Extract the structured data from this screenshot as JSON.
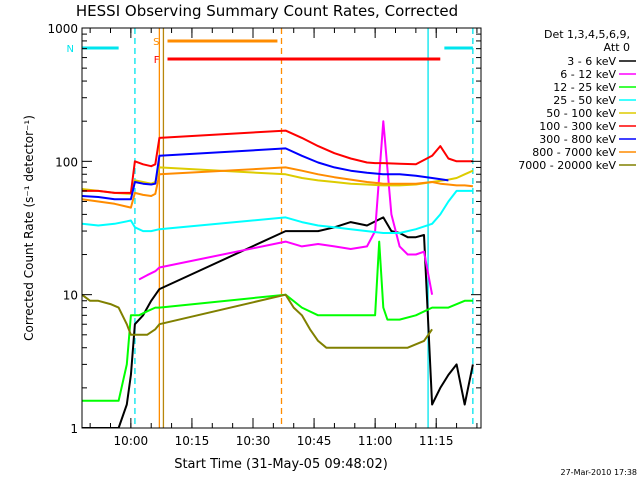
{
  "chart_data": {
    "type": "line",
    "title": "HESSI Observing Summary Count Rates, Corrected",
    "xlabel": "Start Time (31-May-05 09:48:02)",
    "ylabel": "Corrected Count Rate (s⁻¹ detector⁻¹)",
    "yscale": "log",
    "ylim": [
      1,
      1000
    ],
    "xlim": [
      "09:48",
      "11:26"
    ],
    "x_ticks": [
      "10:00",
      "10:15",
      "10:30",
      "10:45",
      "11:00",
      "11:15"
    ],
    "y_ticks": [
      "1",
      "10",
      "100",
      "1000"
    ],
    "timestamp": "27-Mar-2010 17:38",
    "legend": {
      "position": "right",
      "header": "Det 1,3,4,5,6,9,",
      "subheader": "Att 0"
    },
    "flags": [
      {
        "label": "N",
        "color": "#00e5ee",
        "segments": [
          [
            "09:48",
            "09:57"
          ],
          [
            "11:17",
            "11:24"
          ]
        ]
      },
      {
        "label": "S",
        "color": "#ff8c00",
        "segments": [
          [
            "10:09",
            "10:36"
          ]
        ]
      },
      {
        "label": "F",
        "color": "#ff0000",
        "segments": [
          [
            "10:09",
            "11:16"
          ]
        ]
      }
    ],
    "vlines": [
      {
        "t": "10:01",
        "color": "#00e5ee",
        "dash": true
      },
      {
        "t": "10:07",
        "color": "#ff8c00",
        "dash": false
      },
      {
        "t": "10:08",
        "color": "#b8860b",
        "dash": false
      },
      {
        "t": "10:37",
        "color": "#ff8c00",
        "dash": true
      },
      {
        "t": "11:13",
        "color": "#00e5ee",
        "dash": false
      },
      {
        "t": "11:24",
        "color": "#00e5ee",
        "dash": true
      }
    ],
    "series": [
      {
        "name": "3 - 6 keV",
        "color": "#000000",
        "x": [
          "09:48",
          "09:50",
          "09:52",
          "09:55",
          "09:57",
          "09:59",
          "10:00",
          "10:01",
          "10:03",
          "10:05",
          "10:07",
          "10:38",
          "10:42",
          "10:46",
          "10:50",
          "10:54",
          "10:58",
          "11:02",
          "11:04",
          "11:06",
          "11:08",
          "11:10",
          "11:12",
          "11:14",
          "11:16",
          "11:18",
          "11:20",
          "11:22",
          "11:24"
        ],
        "y": [
          1,
          1,
          1,
          1,
          1,
          1.5,
          2.5,
          6,
          7,
          9,
          11,
          30,
          30,
          30,
          32,
          35,
          33,
          38,
          30,
          29,
          27,
          27,
          28,
          1.5,
          2,
          2.5,
          3,
          1.5,
          3
        ]
      },
      {
        "name": "6 - 12 keV",
        "color": "#ff00ff",
        "x": [
          "10:02",
          "10:04",
          "10:06",
          "10:07",
          "10:38",
          "10:42",
          "10:46",
          "10:50",
          "10:54",
          "10:58",
          "11:00",
          "11:02",
          "11:04",
          "11:06",
          "11:08",
          "11:10",
          "11:12",
          "11:14"
        ],
        "y": [
          13,
          14,
          15,
          16,
          25,
          23,
          24,
          23,
          22,
          23,
          30,
          200,
          40,
          23,
          20,
          20,
          21,
          10
        ]
      },
      {
        "name": "12 - 25 keV",
        "color": "#00ff00",
        "x": [
          "09:48",
          "09:50",
          "09:55",
          "09:57",
          "09:59",
          "10:00",
          "10:02",
          "10:04",
          "10:06",
          "10:07",
          "10:38",
          "10:42",
          "10:46",
          "10:50",
          "10:54",
          "10:58",
          "11:00",
          "11:01",
          "11:02",
          "11:03",
          "11:04",
          "11:06",
          "11:10",
          "11:14",
          "11:18",
          "11:22",
          "11:24"
        ],
        "y": [
          1.6,
          1.6,
          1.6,
          1.6,
          3,
          7,
          7,
          7.5,
          8,
          8,
          10,
          8,
          7,
          7,
          7,
          7,
          7,
          25,
          8,
          6.5,
          6.5,
          6.5,
          7,
          8,
          8,
          9,
          9
        ]
      },
      {
        "name": "25 - 50 keV",
        "color": "#00ffff",
        "x": [
          "09:48",
          "09:52",
          "09:56",
          "10:00",
          "10:01",
          "10:03",
          "10:05",
          "10:07",
          "10:38",
          "10:42",
          "10:46",
          "10:50",
          "10:54",
          "10:58",
          "11:02",
          "11:06",
          "11:10",
          "11:14",
          "11:16",
          "11:18",
          "11:20",
          "11:22",
          "11:24"
        ],
        "y": [
          34,
          33,
          34,
          36,
          32,
          30,
          30,
          31,
          38,
          35,
          33,
          32,
          31,
          30,
          29,
          29,
          31,
          34,
          40,
          50,
          60,
          60,
          60
        ]
      },
      {
        "name": "50 - 100 keV",
        "color": "#ddcc00",
        "x": [
          "09:48",
          "09:52",
          "09:56",
          "10:00",
          "10:01",
          "10:03",
          "10:05",
          "10:06",
          "10:07",
          "10:38",
          "10:42",
          "10:46",
          "10:50",
          "10:54",
          "10:58",
          "11:02",
          "11:06",
          "11:10",
          "11:14",
          "11:18",
          "11:20",
          "11:22",
          "11:24"
        ],
        "y": [
          62,
          60,
          58,
          57,
          72,
          70,
          68,
          70,
          90,
          80,
          75,
          72,
          70,
          68,
          67,
          66,
          66,
          67,
          70,
          73,
          75,
          80,
          85
        ]
      },
      {
        "name": "100 - 300 keV",
        "color": "#ff0000",
        "x": [
          "09:48",
          "09:52",
          "09:56",
          "10:00",
          "10:01",
          "10:03",
          "10:05",
          "10:06",
          "10:07",
          "10:38",
          "10:42",
          "10:46",
          "10:50",
          "10:54",
          "10:58",
          "11:00",
          "11:02",
          "11:06",
          "11:10",
          "11:14",
          "11:16",
          "11:18",
          "11:20",
          "11:22",
          "11:24"
        ],
        "y": [
          60,
          60,
          58,
          58,
          100,
          95,
          92,
          95,
          150,
          170,
          150,
          130,
          115,
          105,
          98,
          97,
          97,
          96,
          95,
          110,
          130,
          105,
          100,
          100,
          100
        ]
      },
      {
        "name": "300 - 800 keV",
        "color": "#0000ff",
        "x": [
          "09:48",
          "09:52",
          "09:56",
          "10:00",
          "10:01",
          "10:03",
          "10:05",
          "10:06",
          "10:07",
          "10:38",
          "10:42",
          "10:46",
          "10:50",
          "10:54",
          "10:58",
          "11:02",
          "11:06",
          "11:10",
          "11:14",
          "11:18"
        ],
        "y": [
          55,
          54,
          52,
          52,
          70,
          68,
          67,
          68,
          110,
          125,
          110,
          98,
          90,
          85,
          82,
          80,
          80,
          78,
          75,
          72
        ]
      },
      {
        "name": "800 - 7000 keV",
        "color": "#ff8c00",
        "x": [
          "09:48",
          "09:52",
          "09:56",
          "10:00",
          "10:01",
          "10:03",
          "10:05",
          "10:06",
          "10:07",
          "10:38",
          "10:42",
          "10:46",
          "10:50",
          "10:54",
          "10:58",
          "11:02",
          "11:06",
          "11:10",
          "11:14",
          "11:16",
          "11:18",
          "11:20",
          "11:22",
          "11:24"
        ],
        "y": [
          52,
          50,
          48,
          45,
          58,
          56,
          55,
          57,
          80,
          90,
          85,
          80,
          76,
          73,
          70,
          68,
          68,
          68,
          70,
          68,
          67,
          66,
          66,
          65
        ]
      },
      {
        "name": "7000 - 20000 keV",
        "color": "#808000",
        "x": [
          "09:48",
          "09:50",
          "09:52",
          "09:55",
          "09:57",
          "09:59",
          "10:00",
          "10:02",
          "10:04",
          "10:06",
          "10:07",
          "10:38",
          "10:40",
          "10:42",
          "10:44",
          "10:46",
          "10:48",
          "10:52",
          "10:56",
          "11:00",
          "11:04",
          "11:08",
          "11:12",
          "11:14"
        ],
        "y": [
          10,
          9,
          9,
          8.5,
          8,
          6,
          5,
          5,
          5,
          5.5,
          6,
          10,
          8,
          7,
          5.5,
          4.5,
          4,
          4,
          4,
          4,
          4,
          4,
          4.5,
          5.5
        ]
      }
    ]
  }
}
